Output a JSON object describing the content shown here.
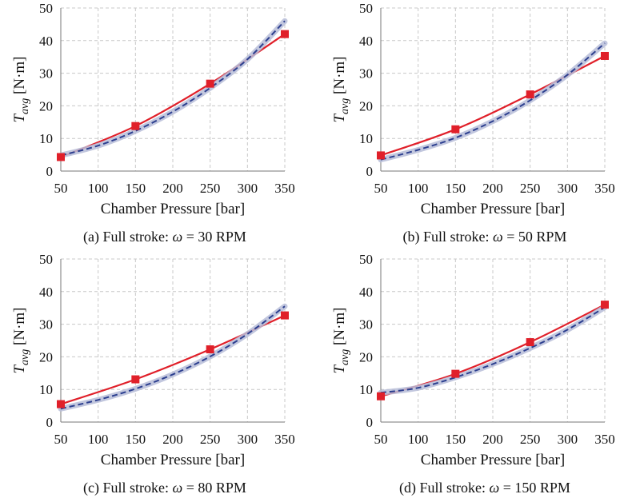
{
  "labels": {
    "xlabel": "Chamber Pressure [bar]",
    "ylabel_main": "T",
    "ylabel_sub": "avg",
    "ylabel_unit": " [N·m]"
  },
  "chart_data": [
    {
      "type": "line",
      "caption_prefix": "(a) Full stroke: ",
      "caption_omega": "ω",
      "caption_suffix": " = 30 RPM",
      "xlabel": "Chamber Pressure [bar]",
      "ylabel": "T_avg [N·m]",
      "xlim": [
        50,
        350
      ],
      "ylim": [
        0,
        50
      ],
      "xticks": [
        50,
        100,
        150,
        200,
        250,
        300,
        350
      ],
      "yticks": [
        0,
        10,
        20,
        30,
        40,
        50
      ],
      "grid": true,
      "series": [
        {
          "role": "measured",
          "x": [
            50,
            150,
            250,
            350
          ],
          "y": [
            4.3,
            13.8,
            26.8,
            42.0
          ],
          "color": "#e0202a",
          "markers": true
        },
        {
          "role": "model",
          "x": [
            50,
            100,
            150,
            200,
            250,
            300,
            350
          ],
          "y": [
            4.8,
            7.8,
            12.3,
            18.2,
            25.5,
            34.3,
            46.0
          ],
          "color": "#2c3f8f",
          "markers": false
        }
      ]
    },
    {
      "type": "line",
      "caption_prefix": "(b) Full stroke: ",
      "caption_omega": "ω",
      "caption_suffix": " = 50 RPM",
      "xlabel": "Chamber Pressure [bar]",
      "ylabel": "T_avg [N·m]",
      "xlim": [
        50,
        350
      ],
      "ylim": [
        0,
        50
      ],
      "xticks": [
        50,
        100,
        150,
        200,
        250,
        300,
        350
      ],
      "yticks": [
        0,
        10,
        20,
        30,
        40,
        50
      ],
      "grid": true,
      "series": [
        {
          "role": "measured",
          "x": [
            50,
            150,
            250,
            350
          ],
          "y": [
            4.8,
            12.8,
            23.5,
            35.3
          ],
          "color": "#e0202a",
          "markers": true
        },
        {
          "role": "model",
          "x": [
            50,
            100,
            150,
            200,
            250,
            300,
            350
          ],
          "y": [
            3.5,
            6.5,
            10.2,
            15.3,
            21.7,
            29.5,
            39.2
          ],
          "color": "#2c3f8f",
          "markers": false
        }
      ]
    },
    {
      "type": "line",
      "caption_prefix": "(c) Full stroke: ",
      "caption_omega": "ω",
      "caption_suffix": " = 80 RPM",
      "xlabel": "Chamber Pressure [bar]",
      "ylabel": "T_avg [N·m]",
      "xlim": [
        50,
        350
      ],
      "ylim": [
        0,
        50
      ],
      "xticks": [
        50,
        100,
        150,
        200,
        250,
        300,
        350
      ],
      "yticks": [
        0,
        10,
        20,
        30,
        40,
        50
      ],
      "grid": true,
      "series": [
        {
          "role": "measured",
          "x": [
            50,
            150,
            250,
            350
          ],
          "y": [
            5.5,
            13.1,
            22.3,
            32.7
          ],
          "color": "#e0202a",
          "markers": true
        },
        {
          "role": "model",
          "x": [
            50,
            100,
            150,
            200,
            250,
            300,
            350
          ],
          "y": [
            4.1,
            6.8,
            10.2,
            14.6,
            20.1,
            27.0,
            35.5
          ],
          "color": "#2c3f8f",
          "markers": false
        }
      ]
    },
    {
      "type": "line",
      "caption_prefix": "(d) Full stroke: ",
      "caption_omega": "ω",
      "caption_suffix": " = 150 RPM",
      "xlabel": "Chamber Pressure [bar]",
      "ylabel": "T_avg [N·m]",
      "xlim": [
        50,
        350
      ],
      "ylim": [
        0,
        50
      ],
      "xticks": [
        50,
        100,
        150,
        200,
        250,
        300,
        350
      ],
      "yticks": [
        0,
        10,
        20,
        30,
        40,
        50
      ],
      "grid": true,
      "series": [
        {
          "role": "measured",
          "x": [
            50,
            150,
            250,
            350
          ],
          "y": [
            7.9,
            14.8,
            24.5,
            36.0
          ],
          "color": "#e0202a",
          "markers": true
        },
        {
          "role": "model",
          "x": [
            50,
            100,
            150,
            200,
            250,
            300,
            350
          ],
          "y": [
            9.0,
            10.5,
            13.7,
            17.8,
            22.7,
            28.3,
            35.2
          ],
          "color": "#2c3f8f",
          "markers": false
        }
      ]
    }
  ]
}
